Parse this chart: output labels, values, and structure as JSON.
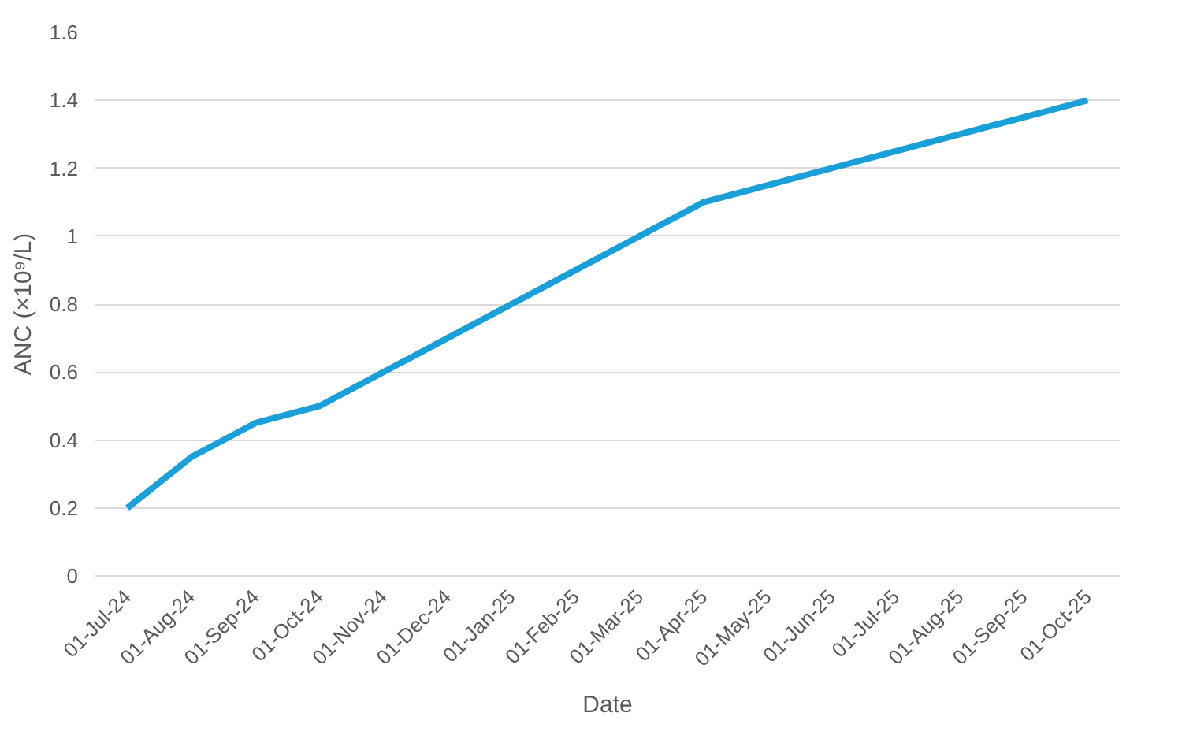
{
  "chart_data": {
    "type": "line",
    "xlabel": "Date",
    "ylabel": "ANC (×10⁹/L)",
    "categories": [
      "01-Jul-24",
      "01-Aug-24",
      "01-Sep-24",
      "01-Oct-24",
      "01-Nov-24",
      "01-Dec-24",
      "01-Jan-25",
      "01-Feb-25",
      "01-Mar-25",
      "01-Apr-25",
      "01-May-25",
      "01-Jun-25",
      "01-Jul-25",
      "01-Aug-25",
      "01-Sep-25",
      "01-Oct-25"
    ],
    "series": [
      {
        "color": "#1a9fd8",
        "values": [
          0.2,
          0.35,
          0.45,
          0.5,
          0.6,
          0.7,
          0.8,
          0.9,
          1.0,
          1.1,
          1.15,
          1.2,
          1.25,
          1.3,
          1.35,
          1.4
        ]
      }
    ],
    "ylim": [
      0,
      1.6
    ],
    "yticks": [
      0,
      0.2,
      0.4,
      0.6,
      0.8,
      1,
      1.2,
      1.4,
      1.6
    ],
    "grid": "y",
    "marker": "none",
    "line_style": "solid"
  }
}
